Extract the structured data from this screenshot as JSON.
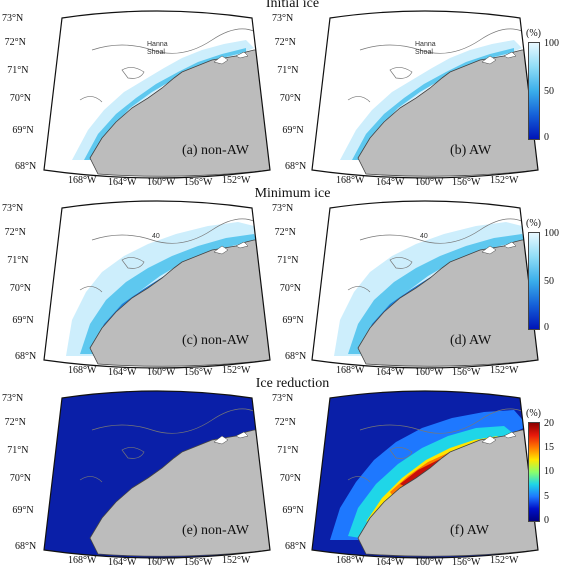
{
  "sections": [
    {
      "title": "Initial ice"
    },
    {
      "title": "Minimum ice"
    },
    {
      "title": "Ice reduction"
    }
  ],
  "panels": [
    {
      "label": "(a) non-AW",
      "kind": "ice",
      "variant": "initial",
      "shoal_label": [
        "Hanna",
        "Shoal"
      ]
    },
    {
      "label": "(b) AW",
      "kind": "ice",
      "variant": "initial",
      "shoal_label": [
        "Hanna",
        "Shoal"
      ]
    },
    {
      "label": "(c) non-AW",
      "kind": "ice",
      "variant": "minimum",
      "contour_label": "40"
    },
    {
      "label": "(d) AW",
      "kind": "ice",
      "variant": "minimum",
      "contour_label": "40"
    },
    {
      "label": "(e) non-AW",
      "kind": "reduction",
      "variant": "nonaw"
    },
    {
      "label": "(f) AW",
      "kind": "reduction",
      "variant": "aw"
    }
  ],
  "lat_labels": [
    "73°N",
    "72°N",
    "71°N",
    "70°N",
    "69°N",
    "68°N"
  ],
  "lon_labels": [
    "168°W",
    "164°W",
    "160°W",
    "156°W",
    "152°W"
  ],
  "colorbars": [
    {
      "unit": "(%)",
      "ticks": [
        "100",
        "50",
        "0"
      ],
      "scale": "ice"
    },
    {
      "unit": "(%)",
      "ticks": [
        "100",
        "50",
        "0"
      ],
      "scale": "ice"
    },
    {
      "unit": "(%)",
      "ticks": [
        "20",
        "15",
        "10",
        "5",
        "0"
      ],
      "scale": "jet"
    }
  ],
  "colors": {
    "land": "#bcbcbc",
    "ice_low": "#cdeefc",
    "ice_mid": "#5ec8ef",
    "ice_high": "#1f7fd8",
    "reduction_bg": "#0a1fa8"
  }
}
